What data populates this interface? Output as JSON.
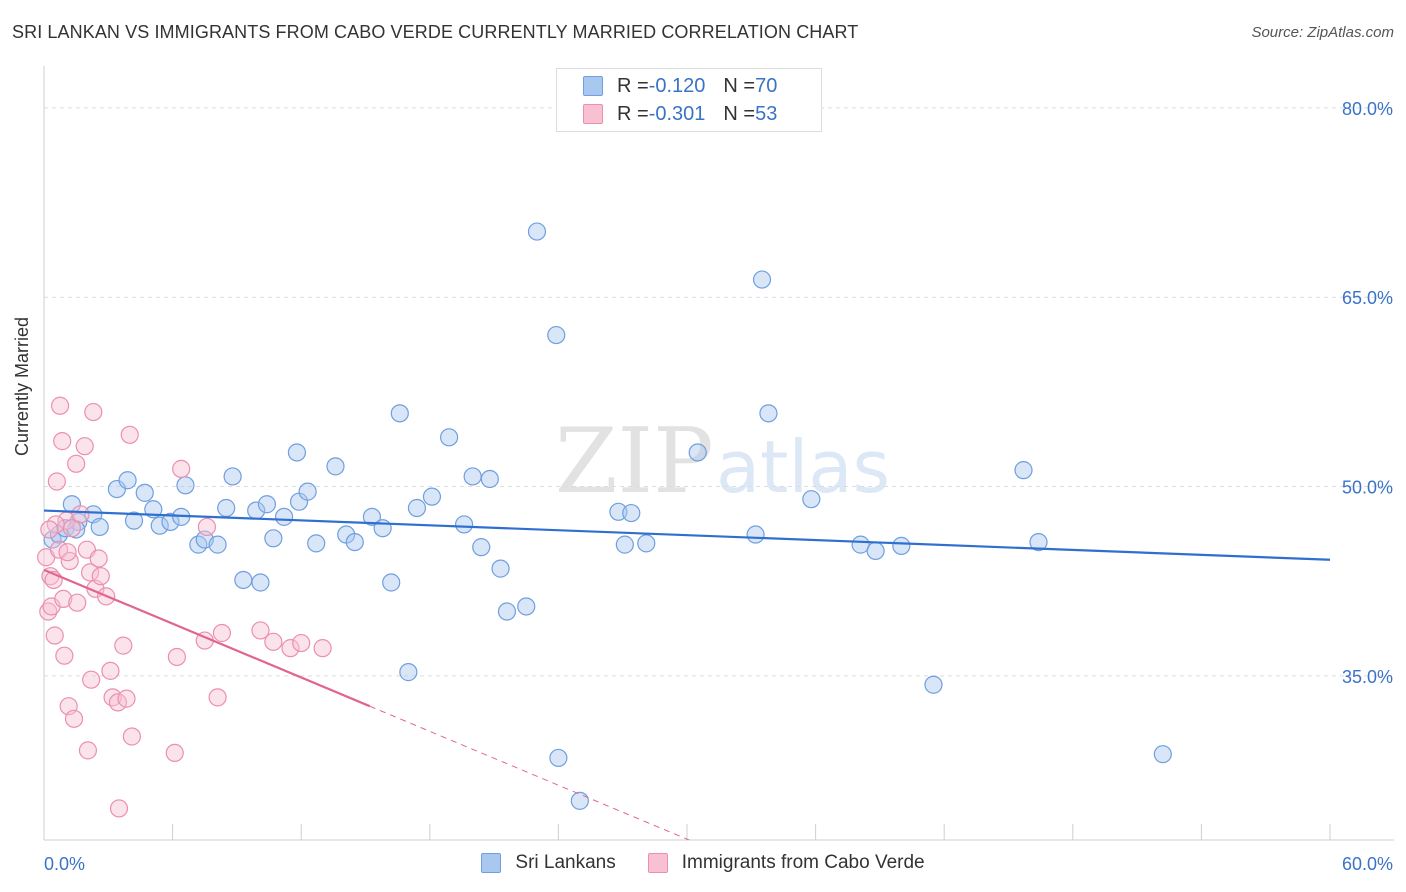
{
  "title": "SRI LANKAN VS IMMIGRANTS FROM CABO VERDE CURRENTLY MARRIED CORRELATION CHART",
  "source": "Source: ZipAtlas.com",
  "watermark": {
    "zip": "ZIP",
    "atlas": "atlas"
  },
  "legend_top": [
    {
      "r_label": "R = ",
      "r_value": "-0.120",
      "n_label": "N = ",
      "n_value": "70",
      "color": "#a9c8f0",
      "border": "#6f9fe0"
    },
    {
      "r_label": "R = ",
      "r_value": "-0.301",
      "n_label": "N = ",
      "n_value": "53",
      "color": "#f7c1d2",
      "border": "#ec8fae"
    }
  ],
  "chart_data": {
    "type": "scatter",
    "xlabel": "",
    "ylabel": "Currently Married",
    "xlim": [
      0,
      60
    ],
    "ylim": [
      22,
      83
    ],
    "x_tick_labels": [
      "0.0%",
      "60.0%"
    ],
    "y_ticks": [
      35,
      50,
      65,
      80
    ],
    "y_tick_labels": [
      "35.0%",
      "50.0%",
      "65.0%",
      "80.0%"
    ],
    "grid": "horizontal dashed",
    "series": [
      {
        "name": "Sri Lankans",
        "color": "#6f9fe0",
        "fill": "#a9c8f0",
        "trend": {
          "x": [
            0,
            60
          ],
          "y": [
            48.1,
            44.2
          ],
          "color": "#2f6fcf"
        },
        "points": [
          [
            0.4,
            45.8
          ],
          [
            0.7,
            46.2
          ],
          [
            1.0,
            46.7
          ],
          [
            1.3,
            48.6
          ],
          [
            1.6,
            47.2
          ],
          [
            2.3,
            47.8
          ],
          [
            2.6,
            46.8
          ],
          [
            3.4,
            49.8
          ],
          [
            3.9,
            50.5
          ],
          [
            4.2,
            47.3
          ],
          [
            4.7,
            49.5
          ],
          [
            5.1,
            48.2
          ],
          [
            5.4,
            46.9
          ],
          [
            5.9,
            47.2
          ],
          [
            6.4,
            47.6
          ],
          [
            6.6,
            50.1
          ],
          [
            7.2,
            45.4
          ],
          [
            7.5,
            45.8
          ],
          [
            8.1,
            45.4
          ],
          [
            8.5,
            48.3
          ],
          [
            8.8,
            50.8
          ],
          [
            9.3,
            42.6
          ],
          [
            9.9,
            48.1
          ],
          [
            10.1,
            42.4
          ],
          [
            10.4,
            48.6
          ],
          [
            10.7,
            45.9
          ],
          [
            11.2,
            47.6
          ],
          [
            11.8,
            52.7
          ],
          [
            11.9,
            48.8
          ],
          [
            12.3,
            49.6
          ],
          [
            12.7,
            45.5
          ],
          [
            13.6,
            51.6
          ],
          [
            14.1,
            46.2
          ],
          [
            14.5,
            45.6
          ],
          [
            15.3,
            47.6
          ],
          [
            15.8,
            46.7
          ],
          [
            16.2,
            42.4
          ],
          [
            16.6,
            55.8
          ],
          [
            17.0,
            35.3
          ],
          [
            17.4,
            48.3
          ],
          [
            18.1,
            49.2
          ],
          [
            18.9,
            53.9
          ],
          [
            19.6,
            47.0
          ],
          [
            20.0,
            50.8
          ],
          [
            20.4,
            45.2
          ],
          [
            20.8,
            50.6
          ],
          [
            21.3,
            43.5
          ],
          [
            21.6,
            40.1
          ],
          [
            22.5,
            40.5
          ],
          [
            23.0,
            70.2
          ],
          [
            23.9,
            62.0
          ],
          [
            24.0,
            28.5
          ],
          [
            25.0,
            25.1
          ],
          [
            26.8,
            48.0
          ],
          [
            27.1,
            45.4
          ],
          [
            27.4,
            47.9
          ],
          [
            28.1,
            45.5
          ],
          [
            30.5,
            52.7
          ],
          [
            33.2,
            46.2
          ],
          [
            33.5,
            66.4
          ],
          [
            33.8,
            55.8
          ],
          [
            35.8,
            49.0
          ],
          [
            38.1,
            45.4
          ],
          [
            38.8,
            44.9
          ],
          [
            40.0,
            45.3
          ],
          [
            41.5,
            34.3
          ],
          [
            45.7,
            51.3
          ],
          [
            46.4,
            45.6
          ],
          [
            52.2,
            28.8
          ],
          [
            1.5,
            46.6
          ]
        ]
      },
      {
        "name": "Immigrants from Cabo Verde",
        "color": "#ec8fae",
        "fill": "#f7c1d2",
        "trend": {
          "x": [
            0,
            15.2
          ],
          "y": [
            43.4,
            32.6
          ],
          "color": "#e0658f",
          "dash_x": [
            15.2,
            36
          ],
          "dash_y": [
            32.6,
            17.8
          ]
        },
        "points": [
          [
            0.1,
            44.4
          ],
          [
            0.2,
            40.1
          ],
          [
            0.3,
            42.9
          ],
          [
            0.35,
            40.5
          ],
          [
            0.45,
            42.6
          ],
          [
            0.5,
            38.2
          ],
          [
            0.6,
            50.4
          ],
          [
            0.7,
            45.0
          ],
          [
            0.75,
            56.4
          ],
          [
            0.85,
            53.6
          ],
          [
            0.9,
            41.1
          ],
          [
            0.95,
            36.6
          ],
          [
            1.05,
            47.3
          ],
          [
            1.15,
            32.6
          ],
          [
            1.2,
            44.1
          ],
          [
            1.3,
            46.7
          ],
          [
            1.4,
            31.6
          ],
          [
            1.5,
            51.8
          ],
          [
            1.55,
            40.8
          ],
          [
            1.7,
            47.8
          ],
          [
            1.9,
            53.2
          ],
          [
            2.0,
            45.0
          ],
          [
            2.05,
            29.1
          ],
          [
            2.15,
            43.2
          ],
          [
            2.2,
            34.7
          ],
          [
            2.3,
            55.9
          ],
          [
            2.4,
            41.9
          ],
          [
            2.55,
            44.3
          ],
          [
            2.65,
            42.9
          ],
          [
            2.9,
            41.3
          ],
          [
            3.1,
            35.4
          ],
          [
            3.2,
            33.3
          ],
          [
            3.45,
            32.9
          ],
          [
            3.7,
            37.4
          ],
          [
            3.85,
            33.2
          ],
          [
            4.0,
            54.1
          ],
          [
            4.1,
            30.2
          ],
          [
            3.5,
            24.5
          ],
          [
            6.1,
            28.9
          ],
          [
            6.2,
            36.5
          ],
          [
            6.4,
            51.4
          ],
          [
            7.5,
            37.8
          ],
          [
            7.6,
            46.8
          ],
          [
            8.1,
            33.3
          ],
          [
            8.3,
            38.4
          ],
          [
            10.1,
            38.6
          ],
          [
            10.7,
            37.7
          ],
          [
            11.5,
            37.2
          ],
          [
            12.0,
            37.6
          ],
          [
            13.0,
            37.2
          ],
          [
            0.55,
            47.0
          ],
          [
            1.1,
            44.8
          ],
          [
            0.25,
            46.6
          ]
        ]
      }
    ]
  }
}
